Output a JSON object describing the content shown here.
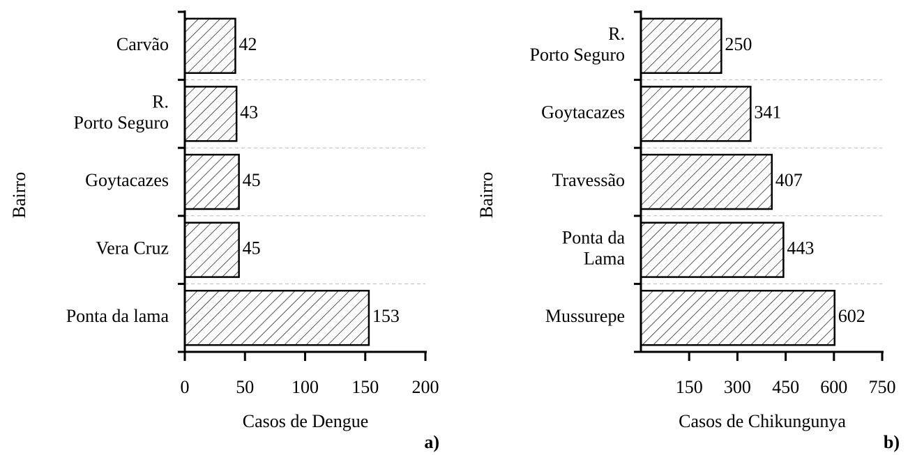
{
  "chart_data": [
    {
      "type": "bar",
      "orientation": "horizontal",
      "panel_label": "a)",
      "xlabel": "Casos de Dengue",
      "ylabel": "Bairro",
      "categories": [
        "Carvão",
        "R.\nPorto Seguro",
        "Goytacazes",
        "Vera Cruz",
        "Ponta da lama"
      ],
      "values": [
        42,
        43,
        45,
        45,
        153
      ],
      "xlim": [
        0,
        200
      ],
      "xticks": [
        0,
        50,
        100,
        150,
        200
      ],
      "color": "#000000"
    },
    {
      "type": "bar",
      "orientation": "horizontal",
      "panel_label": "b)",
      "xlabel": "Casos de Chikungunya",
      "ylabel": "Bairro",
      "categories": [
        "R.\nPorto Seguro",
        "Goytacazes",
        "Travessão",
        "Ponta da\nLama",
        "Mussurepe"
      ],
      "values": [
        250,
        341,
        407,
        443,
        602
      ],
      "xlim": [
        0,
        750
      ],
      "xticks": [
        150,
        300,
        450,
        600,
        750
      ],
      "color": "#000000"
    }
  ]
}
